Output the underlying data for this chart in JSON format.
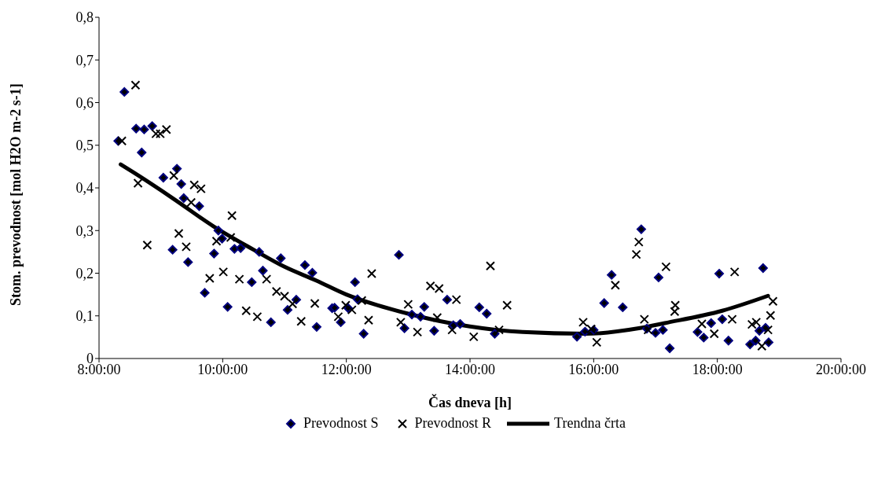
{
  "chart_data": {
    "type": "scatter",
    "xlabel": "Čas dneva [h]",
    "ylabel": "Stom. prevodnost [mol H2O m-2 s-1]",
    "xlim": [
      8,
      20
    ],
    "xticks": [
      {
        "value": 8,
        "label": "8:00:00"
      },
      {
        "value": 10,
        "label": "10:00:00"
      },
      {
        "value": 12,
        "label": "12:00:00"
      },
      {
        "value": 14,
        "label": "14:00:00"
      },
      {
        "value": 16,
        "label": "16:00:00"
      },
      {
        "value": 18,
        "label": "18:00:00"
      },
      {
        "value": 20,
        "label": "20:00:00"
      }
    ],
    "ylim": [
      0,
      0.8
    ],
    "yticks": [
      0,
      {
        "value": 0.1,
        "label": "0,1"
      },
      {
        "value": 0.2,
        "label": "0,2"
      },
      {
        "value": 0.3,
        "label": "0,3"
      },
      {
        "value": 0.4,
        "label": "0,4"
      },
      {
        "value": 0.5,
        "label": "0,5"
      },
      {
        "value": 0.6,
        "label": "0,6"
      },
      {
        "value": 0.7,
        "label": "0,7"
      },
      {
        "value": 0.8,
        "label": "0,8"
      }
    ],
    "grid": false,
    "legend": "bottom",
    "series": [
      {
        "name": "Prevodnost S",
        "marker": "diamond",
        "color": "#000080",
        "x": [
          8.31,
          8.41,
          8.6,
          8.73,
          8.86,
          8.69,
          9.26,
          9.04,
          9.33,
          9.37,
          9.62,
          9.93,
          9.99,
          9.19,
          9.44,
          9.86,
          10.19,
          10.29,
          10.59,
          10.94,
          11.33,
          11.45,
          10.65,
          10.47,
          9.71,
          10.08,
          11.19,
          11.05,
          10.78,
          11.52,
          11.77,
          11.81,
          11.91,
          12.03,
          12.14,
          12.18,
          12.28,
          12.85,
          12.94,
          13.06,
          13.2,
          13.26,
          13.42,
          13.63,
          13.73,
          13.84,
          14.15,
          14.27,
          14.4,
          15.73,
          15.86,
          16.0,
          16.17,
          16.29,
          16.47,
          16.77,
          16.86,
          17.0,
          17.05,
          17.12,
          17.23,
          17.68,
          17.78,
          17.9,
          18.03,
          18.08,
          18.18,
          18.53,
          18.62,
          18.68,
          18.74,
          18.78,
          18.83
        ],
        "values": [
          0.51,
          0.625,
          0.539,
          0.537,
          0.545,
          0.483,
          0.445,
          0.424,
          0.409,
          0.376,
          0.357,
          0.3,
          0.281,
          0.255,
          0.226,
          0.246,
          0.257,
          0.259,
          0.25,
          0.235,
          0.219,
          0.201,
          0.206,
          0.179,
          0.154,
          0.121,
          0.138,
          0.114,
          0.085,
          0.074,
          0.118,
          0.119,
          0.085,
          0.118,
          0.179,
          0.139,
          0.058,
          0.243,
          0.071,
          0.103,
          0.098,
          0.121,
          0.065,
          0.138,
          0.078,
          0.081,
          0.12,
          0.105,
          0.058,
          0.051,
          0.063,
          0.067,
          0.13,
          0.196,
          0.12,
          0.303,
          0.07,
          0.06,
          0.19,
          0.067,
          0.024,
          0.062,
          0.049,
          0.083,
          0.199,
          0.092,
          0.042,
          0.033,
          0.042,
          0.065,
          0.212,
          0.072,
          0.038
        ]
      },
      {
        "name": "Prevodnost R",
        "marker": "cross",
        "color": "#000000",
        "x": [
          8.37,
          8.59,
          8.92,
          9.09,
          8.99,
          8.63,
          8.78,
          9.21,
          9.54,
          9.65,
          9.49,
          10.15,
          10.13,
          9.9,
          9.29,
          9.41,
          9.79,
          10.01,
          10.27,
          10.71,
          10.87,
          11.0,
          11.13,
          10.38,
          10.56,
          11.27,
          11.49,
          11.99,
          11.87,
          12.09,
          12.25,
          12.41,
          12.36,
          12.88,
          13.0,
          13.15,
          13.36,
          13.5,
          13.47,
          13.78,
          13.71,
          14.06,
          14.33,
          14.47,
          14.6,
          15.83,
          15.96,
          16.05,
          16.35,
          16.69,
          16.73,
          16.82,
          16.88,
          17.17,
          17.32,
          17.31,
          17.75,
          17.95,
          18.24,
          18.28,
          18.56,
          18.63,
          18.72,
          18.82,
          18.86,
          18.9
        ],
        "values": [
          0.51,
          0.641,
          0.527,
          0.537,
          0.527,
          0.411,
          0.266,
          0.429,
          0.407,
          0.398,
          0.366,
          0.335,
          0.284,
          0.275,
          0.293,
          0.262,
          0.188,
          0.203,
          0.186,
          0.186,
          0.157,
          0.146,
          0.128,
          0.112,
          0.098,
          0.087,
          0.129,
          0.125,
          0.098,
          0.114,
          0.136,
          0.199,
          0.09,
          0.085,
          0.127,
          0.062,
          0.17,
          0.164,
          0.096,
          0.138,
          0.067,
          0.051,
          0.217,
          0.067,
          0.125,
          0.085,
          0.069,
          0.038,
          0.172,
          0.244,
          0.273,
          0.092,
          0.067,
          0.215,
          0.125,
          0.11,
          0.081,
          0.058,
          0.092,
          0.203,
          0.08,
          0.085,
          0.029,
          0.067,
          0.101,
          0.134
        ]
      },
      {
        "name": "Trendna črta",
        "type": "line",
        "marker": "none",
        "line_style": "solid",
        "color": "#000000",
        "x": [
          8.35,
          8.56,
          9.2,
          9.85,
          10.5,
          11.0,
          11.51,
          12.0,
          12.5,
          13.0,
          13.5,
          14.0,
          14.85,
          15.87,
          16.73,
          17.15,
          18.08,
          18.82
        ],
        "values": [
          0.455,
          0.436,
          0.375,
          0.31,
          0.255,
          0.215,
          0.183,
          0.15,
          0.125,
          0.105,
          0.088,
          0.075,
          0.062,
          0.058,
          0.071,
          0.083,
          0.112,
          0.147
        ]
      }
    ]
  }
}
